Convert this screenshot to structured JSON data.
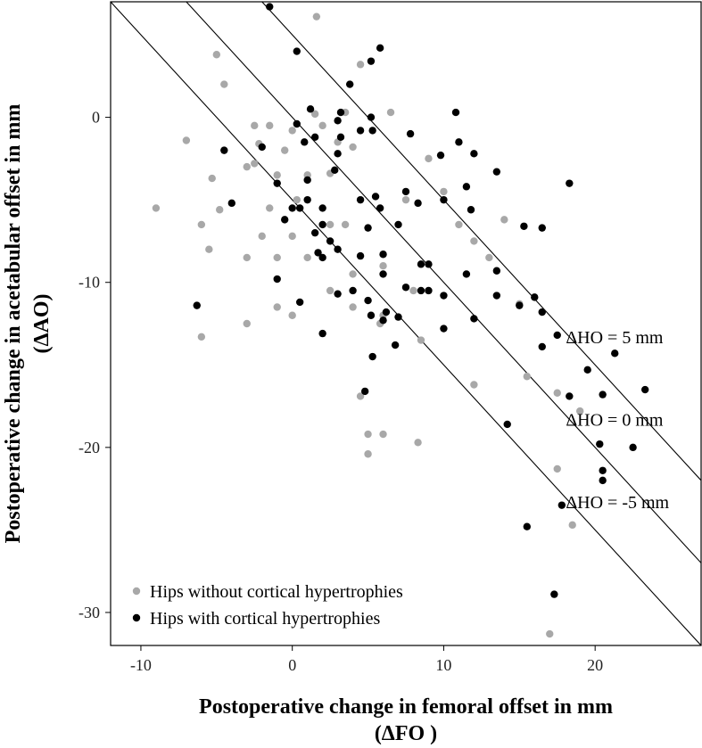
{
  "chart_data": {
    "type": "scatter",
    "xlabel": "Postoperative change in femoral offset in mm",
    "xlabel_sub": "(ΔFO )",
    "ylabel": "Postoperative change in acetabular offset in mm",
    "ylabel_sub": "(ΔAO)",
    "xlim": [
      -12,
      27
    ],
    "ylim": [
      -32,
      7
    ],
    "xticks": [
      -10,
      0,
      10,
      20
    ],
    "yticks": [
      0,
      -10,
      -20,
      -30
    ],
    "grid": false,
    "legend_position": "bottom-left",
    "reference_lines": [
      {
        "label": "ΔHO = 5 mm",
        "offset": 5
      },
      {
        "label": "ΔHO = 0 mm",
        "offset": 0
      },
      {
        "label": "ΔHO = -5 mm",
        "offset": -5
      }
    ],
    "series": [
      {
        "name": "Hips without cortical hypertrophies",
        "color": "#a8a8a8",
        "points": [
          [
            1.6,
            6.1
          ],
          [
            -5,
            3.8
          ],
          [
            4.5,
            3.2
          ],
          [
            -4.5,
            2
          ],
          [
            3.5,
            0.3
          ],
          [
            6.5,
            0.3
          ],
          [
            -2.5,
            -0.5
          ],
          [
            -1.5,
            -0.5
          ],
          [
            0,
            -0.8
          ],
          [
            2,
            -0.5
          ],
          [
            3,
            -1.5
          ],
          [
            -7,
            -1.4
          ],
          [
            -2.2,
            -1.6
          ],
          [
            -0.5,
            -2
          ],
          [
            4,
            -1.8
          ],
          [
            -3,
            -3
          ],
          [
            -2.5,
            -2.8
          ],
          [
            -1,
            -3.5
          ],
          [
            1,
            -3.5
          ],
          [
            -5.3,
            -3.7
          ],
          [
            2.5,
            -3.4
          ],
          [
            -4.8,
            -5.6
          ],
          [
            -9,
            -5.5
          ],
          [
            -6,
            -6.5
          ],
          [
            -2,
            -7.2
          ],
          [
            0,
            -7.2
          ],
          [
            2.5,
            -6.5
          ],
          [
            3.5,
            -6.5
          ],
          [
            -5.5,
            -8
          ],
          [
            -3,
            -8.5
          ],
          [
            -1,
            -8.5
          ],
          [
            1,
            -8.5
          ],
          [
            4,
            -9.5
          ],
          [
            6,
            -9
          ],
          [
            8,
            -10.5
          ],
          [
            -3,
            -12.5
          ],
          [
            -1,
            -11.5
          ],
          [
            0,
            -12
          ],
          [
            2.5,
            -10.5
          ],
          [
            4,
            -11.5
          ],
          [
            5.8,
            -12.5
          ],
          [
            6,
            -12
          ],
          [
            8.5,
            -13.5
          ],
          [
            -6,
            -13.3
          ],
          [
            4.5,
            -16.9
          ],
          [
            5,
            -19.2
          ],
          [
            6,
            -19.2
          ],
          [
            5,
            -20.4
          ],
          [
            8.3,
            -19.7
          ],
          [
            12,
            -16.2
          ],
          [
            13,
            -8.5
          ],
          [
            12,
            -7.5
          ],
          [
            14,
            -6.2
          ],
          [
            15,
            -11.3
          ],
          [
            15.5,
            -15.7
          ],
          [
            16.5,
            -11.8
          ],
          [
            17.5,
            -16.7
          ],
          [
            19,
            -17.8
          ],
          [
            17.5,
            -21.3
          ],
          [
            18.5,
            -24.7
          ],
          [
            17,
            -31.3
          ],
          [
            9,
            -2.5
          ],
          [
            11,
            -6.5
          ],
          [
            7.5,
            -5
          ],
          [
            10,
            -4.5
          ],
          [
            1.5,
            0.2
          ],
          [
            0.3,
            -5
          ],
          [
            -1.5,
            -5.5
          ]
        ]
      },
      {
        "name": "Hips with cortical hypertrophies",
        "color": "#000000",
        "points": [
          [
            -1.5,
            6.7
          ],
          [
            0.3,
            4
          ],
          [
            5.8,
            4.2
          ],
          [
            5.2,
            3.4
          ],
          [
            3.8,
            2
          ],
          [
            1.2,
            0.5
          ],
          [
            3.2,
            0.3
          ],
          [
            5.2,
            0
          ],
          [
            10.8,
            0.3
          ],
          [
            0.3,
            -0.4
          ],
          [
            3,
            -0.2
          ],
          [
            4.5,
            -0.8
          ],
          [
            5.3,
            -0.8
          ],
          [
            7.8,
            -1
          ],
          [
            0.8,
            -1.5
          ],
          [
            -2,
            -1.8
          ],
          [
            1.5,
            -1.2
          ],
          [
            3,
            -2.2
          ],
          [
            9.8,
            -2.3
          ],
          [
            11,
            -1.5
          ],
          [
            12,
            -2.2
          ],
          [
            -4.5,
            -2
          ],
          [
            -4,
            -5.2
          ],
          [
            -1,
            -4
          ],
          [
            0.5,
            -5.5
          ],
          [
            1,
            -5
          ],
          [
            2,
            -5.5
          ],
          [
            2.8,
            -3.2
          ],
          [
            4.5,
            -5
          ],
          [
            5.5,
            -4.8
          ],
          [
            5.8,
            -5.5
          ],
          [
            7.5,
            -4.5
          ],
          [
            8.3,
            -5.2
          ],
          [
            10,
            -5
          ],
          [
            11.5,
            -4.2
          ],
          [
            11.8,
            -5.6
          ],
          [
            13.5,
            -3.3
          ],
          [
            18.3,
            -4
          ],
          [
            0,
            -5.5
          ],
          [
            1.5,
            -7
          ],
          [
            2,
            -6.5
          ],
          [
            2.5,
            -7.5
          ],
          [
            3,
            -8
          ],
          [
            4.5,
            -8.4
          ],
          [
            5,
            -6.7
          ],
          [
            6,
            -8.3
          ],
          [
            6,
            -9.5
          ],
          [
            8.5,
            -8.9
          ],
          [
            9,
            -8.9
          ],
          [
            10,
            -10.8
          ],
          [
            11.5,
            -9.5
          ],
          [
            13.5,
            -9.3
          ],
          [
            15.3,
            -6.6
          ],
          [
            16.5,
            -6.7
          ],
          [
            -1,
            -9.8
          ],
          [
            0.5,
            -11.2
          ],
          [
            1.7,
            -8.2
          ],
          [
            3,
            -10.7
          ],
          [
            4,
            -10.5
          ],
          [
            5,
            -11.1
          ],
          [
            5.2,
            -12
          ],
          [
            6.2,
            -11.8
          ],
          [
            6,
            -12.3
          ],
          [
            7,
            -12.1
          ],
          [
            7.5,
            -10.3
          ],
          [
            8.5,
            -10.5
          ],
          [
            9,
            -10.5
          ],
          [
            10,
            -12.8
          ],
          [
            12,
            -12.2
          ],
          [
            13.5,
            -10.8
          ],
          [
            15,
            -11.4
          ],
          [
            16,
            -10.9
          ],
          [
            16.5,
            -11.8
          ],
          [
            -6.3,
            -11.4
          ],
          [
            2,
            -13.1
          ],
          [
            5.3,
            -14.5
          ],
          [
            6.8,
            -13.8
          ],
          [
            4.8,
            -16.6
          ],
          [
            16.5,
            -13.9
          ],
          [
            17.5,
            -13.2
          ],
          [
            19.5,
            -15.3
          ],
          [
            21.3,
            -14.3
          ],
          [
            23.3,
            -16.5
          ],
          [
            20.5,
            -16.8
          ],
          [
            18.3,
            -16.9
          ],
          [
            14.2,
            -18.6
          ],
          [
            20.3,
            -19.8
          ],
          [
            22.5,
            -20
          ],
          [
            20.5,
            -21.4
          ],
          [
            20.5,
            -22
          ],
          [
            17.8,
            -23.5
          ],
          [
            15.5,
            -24.8
          ],
          [
            17.3,
            -28.9
          ],
          [
            3.2,
            -1.2
          ],
          [
            1,
            -3.8
          ],
          [
            -0.5,
            -6.2
          ],
          [
            2,
            -8.5
          ],
          [
            7,
            -6.5
          ]
        ]
      }
    ]
  }
}
